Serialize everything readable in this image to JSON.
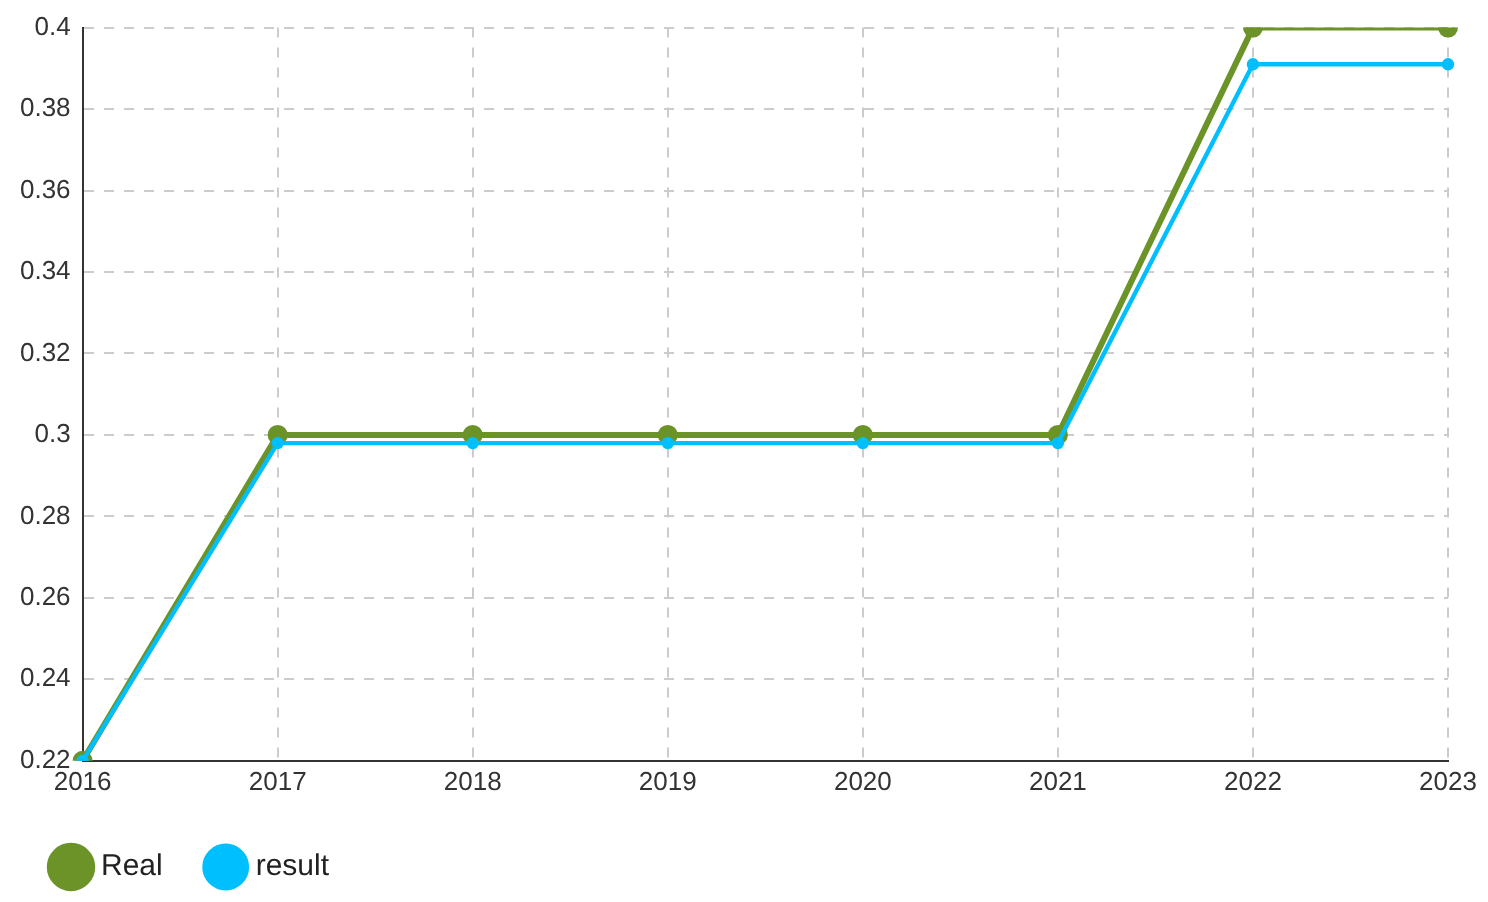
{
  "chart_data": {
    "type": "line",
    "categories": [
      "2016",
      "2017",
      "2018",
      "2019",
      "2020",
      "2021",
      "2022",
      "2023"
    ],
    "series": [
      {
        "name": "Real",
        "color": "#6b9328",
        "values": [
          0.22,
          0.3,
          0.3,
          0.3,
          0.3,
          0.3,
          0.4,
          0.4
        ]
      },
      {
        "name": "result",
        "color": "#00bfff",
        "values": [
          0.22,
          0.298,
          0.298,
          0.298,
          0.298,
          0.298,
          0.391,
          0.391
        ]
      }
    ],
    "ylim": [
      0.22,
      0.4
    ],
    "yticks": [
      0.22,
      0.24,
      0.26,
      0.28,
      0.3,
      0.32,
      0.34,
      0.36,
      0.38,
      0.4
    ],
    "grid": true,
    "legend": "bottom left",
    "marker": "circle",
    "line_style": "solid"
  }
}
